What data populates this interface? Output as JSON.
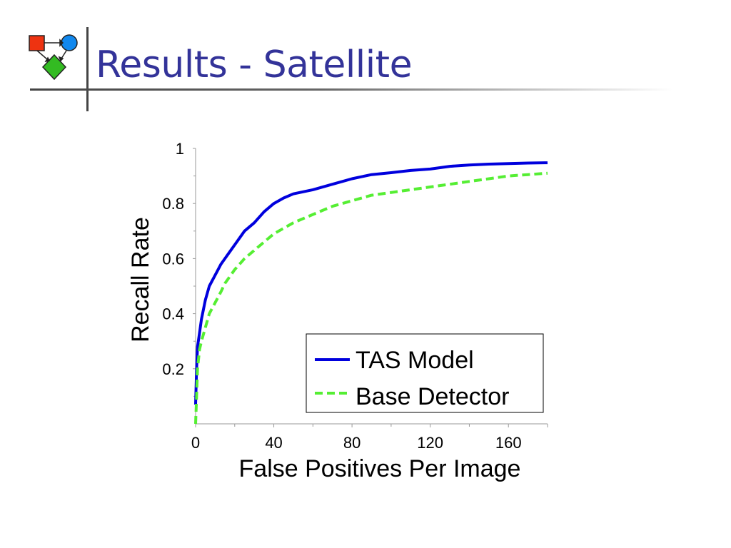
{
  "slide": {
    "title": "Results - Satellite"
  },
  "colors": {
    "title": "#333399",
    "tas_series": "#0000dd",
    "base_series": "#55ee33",
    "logo_square": "#ee3311",
    "logo_circle": "#1188ee",
    "logo_diamond": "#33bb22"
  },
  "logo": {
    "icon": "logo-icon",
    "shapes": [
      "red-square",
      "blue-circle",
      "green-diamond"
    ]
  },
  "chart_data": {
    "type": "line",
    "title": "",
    "xlabel": "False Positives Per Image",
    "ylabel": "Recall Rate",
    "xlim": [
      0,
      180
    ],
    "ylim": [
      0,
      1
    ],
    "xticks": [
      0,
      40,
      80,
      120,
      160
    ],
    "xtick_labels": [
      "0",
      "40",
      "80",
      "120",
      "160"
    ],
    "yticks": [
      0.2,
      0.4,
      0.6,
      0.8,
      1
    ],
    "ytick_labels": [
      "0.2",
      "0.4",
      "0.6",
      "0.8",
      "1"
    ],
    "grid": false,
    "legend_position": "bottom-right",
    "series": [
      {
        "name": "TAS Model",
        "style": "solid",
        "color": "#0000dd",
        "x": [
          0,
          0.5,
          1,
          2,
          3,
          5,
          7,
          10,
          13,
          15,
          18,
          20,
          25,
          30,
          35,
          40,
          45,
          50,
          60,
          70,
          80,
          90,
          100,
          110,
          120,
          130,
          140,
          150,
          160,
          170,
          180
        ],
        "y": [
          0.07,
          0.2,
          0.28,
          0.33,
          0.38,
          0.45,
          0.5,
          0.54,
          0.58,
          0.6,
          0.63,
          0.65,
          0.7,
          0.73,
          0.77,
          0.8,
          0.82,
          0.835,
          0.85,
          0.87,
          0.89,
          0.905,
          0.912,
          0.92,
          0.925,
          0.935,
          0.94,
          0.943,
          0.945,
          0.947,
          0.948
        ]
      },
      {
        "name": "Base Detector",
        "style": "dashed",
        "color": "#55ee33",
        "x": [
          0,
          0.5,
          1,
          2,
          3,
          5,
          7,
          10,
          13,
          15,
          18,
          20,
          25,
          30,
          35,
          40,
          45,
          50,
          60,
          70,
          80,
          90,
          100,
          110,
          120,
          130,
          140,
          150,
          160,
          170,
          180
        ],
        "y": [
          0.0,
          0.1,
          0.2,
          0.27,
          0.3,
          0.35,
          0.4,
          0.44,
          0.48,
          0.51,
          0.54,
          0.56,
          0.6,
          0.63,
          0.66,
          0.69,
          0.71,
          0.73,
          0.76,
          0.79,
          0.81,
          0.83,
          0.84,
          0.85,
          0.86,
          0.87,
          0.88,
          0.89,
          0.9,
          0.905,
          0.91
        ]
      }
    ]
  }
}
